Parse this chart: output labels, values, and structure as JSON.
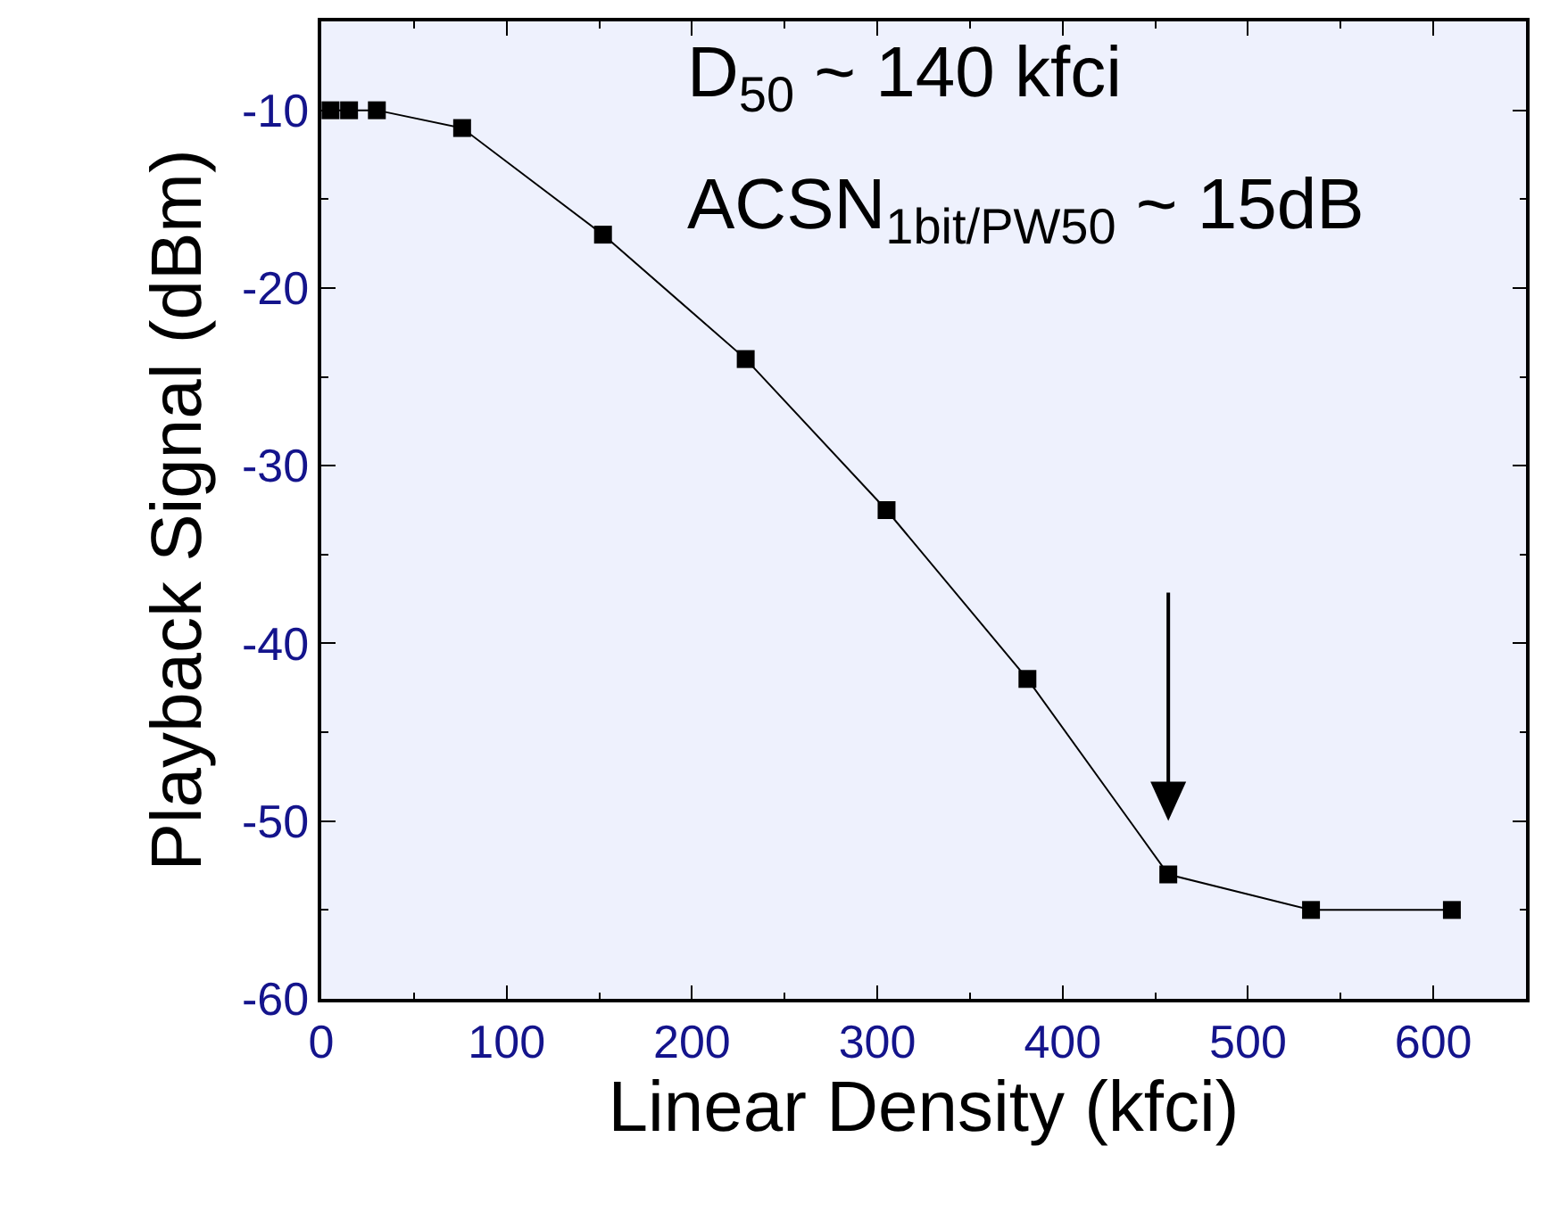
{
  "chart_data": {
    "type": "line",
    "xlabel": "Linear Density (kfci)",
    "ylabel": "Playback Signal (dBm)",
    "x": [
      5,
      15,
      30,
      76,
      152,
      229,
      305,
      381,
      457,
      534,
      610
    ],
    "values": [
      -10,
      -10,
      -10,
      -11,
      -17,
      -24,
      -32.5,
      -42,
      -53,
      -55,
      -55
    ],
    "color": "#000000",
    "marker": "square",
    "line_style": "solid",
    "grid": false,
    "xlim": [
      0,
      650
    ],
    "xticks": [
      0,
      100,
      200,
      300,
      400,
      500,
      600
    ],
    "ylim": [
      -60,
      -5
    ],
    "yticks": [
      -60,
      -50,
      -40,
      -30,
      -20,
      -10
    ],
    "annotations": [
      "D$_{50}$ ~ 140 kfci",
      "ACSN$_{1bit/PW50}$ ~ 15dB"
    ]
  }
}
